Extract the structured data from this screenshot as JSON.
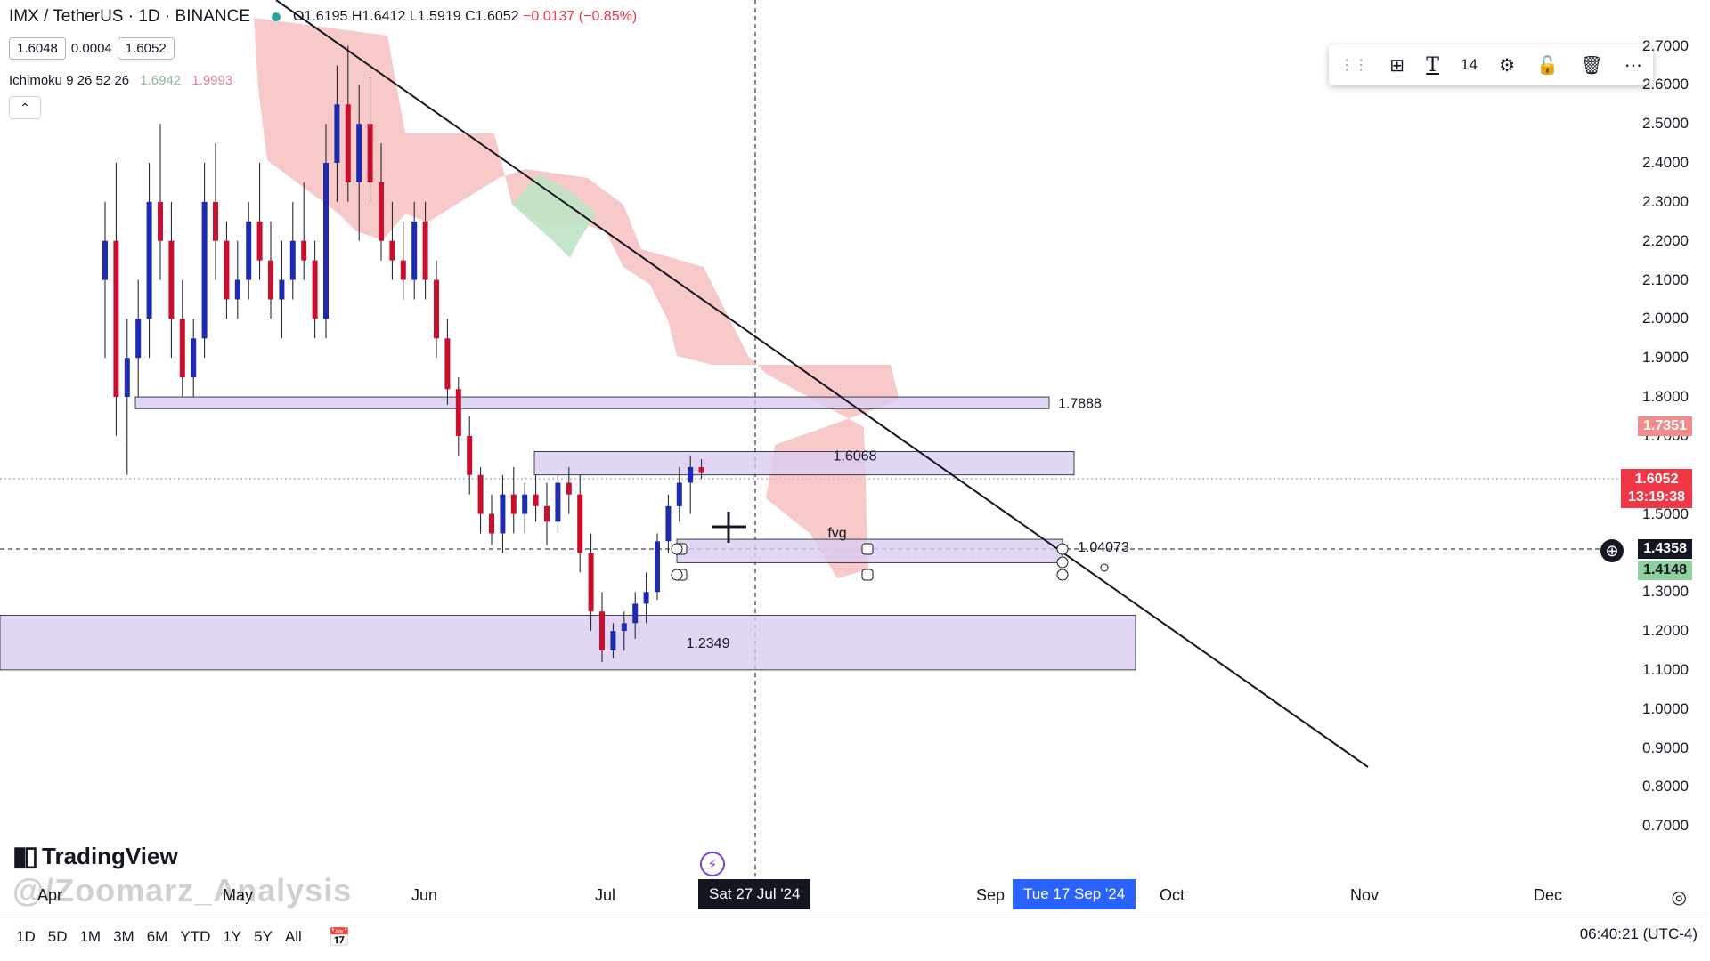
{
  "header": {
    "symbol": "IMX / TetherUS · 1D · BINANCE",
    "ohlc_o": "O1.6195",
    "ohlc_h": "H1.6412",
    "ohlc_l": "L1.5919",
    "ohlc_c": "C1.6052",
    "ohlc_change": "−0.0137 (−0.85%)",
    "bid": "1.6048",
    "spread": "0.0004",
    "ask": "1.6052"
  },
  "indicator": {
    "name": "Ichimoku 9 26 52 26",
    "v1": "1.6942",
    "v2": "1.9993"
  },
  "toolbar": {
    "grid_icon": "grid-icon",
    "text_icon": "T",
    "font_size": "14",
    "settings_icon": "settings-icon",
    "lock_icon": "lock-icon",
    "trash_icon": "trash-icon",
    "more_icon": "more-icon"
  },
  "price_axis": [
    {
      "v": 2.7,
      "label": "2.7000"
    },
    {
      "v": 2.6,
      "label": "2.6000"
    },
    {
      "v": 2.5,
      "label": "2.5000"
    },
    {
      "v": 2.4,
      "label": "2.4000"
    },
    {
      "v": 2.3,
      "label": "2.3000"
    },
    {
      "v": 2.2,
      "label": "2.2000"
    },
    {
      "v": 2.1,
      "label": "2.1000"
    },
    {
      "v": 2.0,
      "label": "2.0000"
    },
    {
      "v": 1.9,
      "label": "1.9000"
    },
    {
      "v": 1.8,
      "label": "1.8000"
    },
    {
      "v": 1.7,
      "label": "1.7000"
    },
    {
      "v": 1.5,
      "label": "1.5000"
    },
    {
      "v": 1.3,
      "label": "1.3000"
    },
    {
      "v": 1.2,
      "label": "1.2000"
    },
    {
      "v": 1.1,
      "label": "1.1000"
    },
    {
      "v": 1.0,
      "label": "1.0000"
    },
    {
      "v": 0.9,
      "label": "0.9000"
    },
    {
      "v": 0.8,
      "label": "0.8000"
    },
    {
      "v": 0.7,
      "label": "0.7000"
    }
  ],
  "price_tags": {
    "ichimoku_top": "1.7351",
    "last_price": "1.6052",
    "countdown": "13:19:38",
    "crosshair": "1.4358",
    "ichimoku_bottom": "1.4148"
  },
  "time_axis": [
    "Apr",
    "May",
    "Jun",
    "Jul",
    "Sep",
    "Oct",
    "Nov",
    "Dec"
  ],
  "time_tags": {
    "crosshair_date": "Sat 27 Jul '24",
    "selected_date": "Tue 17 Sep '24"
  },
  "zones": [
    {
      "label": "1.7888",
      "top": 1.8,
      "bottom": 1.77
    },
    {
      "label": "1.6068",
      "top": 1.66,
      "bottom": 1.6
    },
    {
      "label": "1.04073",
      "sub": "fvg",
      "top": 1.435,
      "bottom": 1.375
    },
    {
      "label": "1.2349",
      "top": 1.24,
      "bottom": 1.1
    }
  ],
  "brand": {
    "name": "TradingView",
    "watermark": "@/Zoomarz_Analysis"
  },
  "timeframes": [
    "1D",
    "5D",
    "1M",
    "3M",
    "6M",
    "YTD",
    "1Y",
    "5Y",
    "All"
  ],
  "clock": "06:40:21 (UTC-4)",
  "chart_data": {
    "type": "candlestick",
    "title": "IMX / TetherUS · 1D · BINANCE",
    "ylim": [
      0.66,
      2.74
    ],
    "colors": {
      "up": "#1e2bb0",
      "down": "#c8102e",
      "cloud_bear": "#f6b7b7",
      "cloud_bull": "#bfe3c4",
      "zone": "#d9cdf3"
    },
    "candles": [
      [
        2.1,
        2.3,
        1.9,
        2.2
      ],
      [
        2.2,
        2.4,
        1.7,
        1.8
      ],
      [
        1.8,
        2.0,
        1.6,
        1.9
      ],
      [
        1.9,
        2.1,
        1.8,
        2.0
      ],
      [
        2.0,
        2.4,
        1.9,
        2.3
      ],
      [
        2.3,
        2.5,
        2.1,
        2.2
      ],
      [
        2.2,
        2.3,
        1.9,
        2.0
      ],
      [
        2.0,
        2.1,
        1.8,
        1.85
      ],
      [
        1.85,
        2.0,
        1.8,
        1.95
      ],
      [
        1.95,
        2.4,
        1.9,
        2.3
      ],
      [
        2.3,
        2.45,
        2.1,
        2.2
      ],
      [
        2.2,
        2.25,
        2.0,
        2.05
      ],
      [
        2.05,
        2.2,
        2.0,
        2.1
      ],
      [
        2.1,
        2.3,
        2.05,
        2.25
      ],
      [
        2.25,
        2.4,
        2.1,
        2.15
      ],
      [
        2.15,
        2.25,
        2.0,
        2.05
      ],
      [
        2.05,
        2.2,
        1.95,
        2.1
      ],
      [
        2.1,
        2.3,
        2.05,
        2.2
      ],
      [
        2.2,
        2.35,
        2.1,
        2.15
      ],
      [
        2.15,
        2.2,
        1.95,
        2.0
      ],
      [
        2.0,
        2.5,
        1.95,
        2.4
      ],
      [
        2.4,
        2.65,
        2.3,
        2.55
      ],
      [
        2.55,
        2.7,
        2.3,
        2.35
      ],
      [
        2.35,
        2.6,
        2.2,
        2.5
      ],
      [
        2.5,
        2.62,
        2.3,
        2.35
      ],
      [
        2.35,
        2.45,
        2.15,
        2.2
      ],
      [
        2.2,
        2.3,
        2.1,
        2.15
      ],
      [
        2.15,
        2.25,
        2.05,
        2.1
      ],
      [
        2.1,
        2.3,
        2.05,
        2.25
      ],
      [
        2.25,
        2.3,
        2.05,
        2.1
      ],
      [
        2.1,
        2.15,
        1.9,
        1.95
      ],
      [
        1.95,
        2.0,
        1.78,
        1.82
      ],
      [
        1.82,
        1.85,
        1.65,
        1.7
      ],
      [
        1.7,
        1.75,
        1.55,
        1.6
      ],
      [
        1.6,
        1.62,
        1.45,
        1.5
      ],
      [
        1.5,
        1.55,
        1.42,
        1.45
      ],
      [
        1.45,
        1.6,
        1.4,
        1.55
      ],
      [
        1.55,
        1.62,
        1.45,
        1.5
      ],
      [
        1.5,
        1.58,
        1.45,
        1.55
      ],
      [
        1.55,
        1.6,
        1.48,
        1.52
      ],
      [
        1.52,
        1.58,
        1.42,
        1.48
      ],
      [
        1.48,
        1.6,
        1.45,
        1.58
      ],
      [
        1.58,
        1.62,
        1.5,
        1.55
      ],
      [
        1.55,
        1.6,
        1.35,
        1.4
      ],
      [
        1.4,
        1.45,
        1.2,
        1.25
      ],
      [
        1.25,
        1.3,
        1.12,
        1.15
      ],
      [
        1.15,
        1.22,
        1.13,
        1.2
      ],
      [
        1.2,
        1.25,
        1.15,
        1.22
      ],
      [
        1.22,
        1.3,
        1.18,
        1.27
      ],
      [
        1.27,
        1.35,
        1.22,
        1.3
      ],
      [
        1.3,
        1.45,
        1.28,
        1.43
      ],
      [
        1.43,
        1.55,
        1.4,
        1.52
      ],
      [
        1.52,
        1.62,
        1.48,
        1.58
      ],
      [
        1.58,
        1.65,
        1.5,
        1.62
      ],
      [
        1.62,
        1.64,
        1.59,
        1.605
      ]
    ],
    "annotations": [
      "1.7888",
      "1.6068",
      "fvg",
      "1.04073",
      "1.2349"
    ]
  }
}
